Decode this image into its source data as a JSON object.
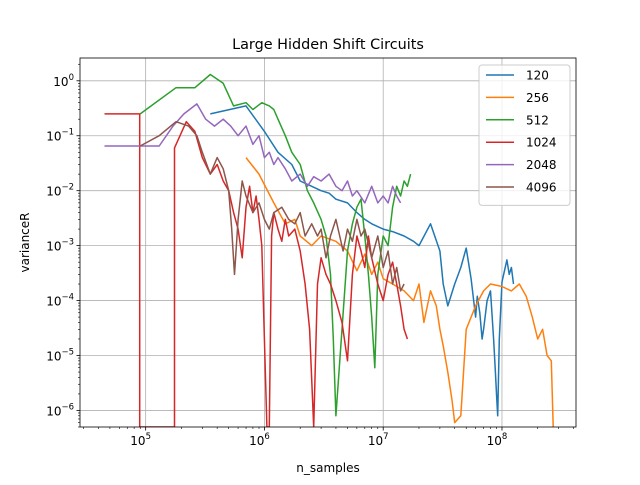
{
  "chart_data": {
    "type": "line",
    "title": "Large Hidden Shift Circuits",
    "xlabel": "n_samples",
    "ylabel": "varianceR",
    "xscale": "log",
    "yscale": "log",
    "xlim": [
      28000,
      420000000
    ],
    "ylim": [
      5e-07,
      2.6
    ],
    "grid": true,
    "legend_position": "top-right",
    "x_ticks": [
      {
        "value": 100000,
        "base": "10",
        "exp": "5"
      },
      {
        "value": 1000000,
        "base": "10",
        "exp": "6"
      },
      {
        "value": 10000000,
        "base": "10",
        "exp": "7"
      },
      {
        "value": 100000000,
        "base": "10",
        "exp": "8"
      }
    ],
    "y_ticks": [
      {
        "value": 1e-06,
        "base": "10",
        "exp": "−6"
      },
      {
        "value": 1e-05,
        "base": "10",
        "exp": "−5"
      },
      {
        "value": 0.0001,
        "base": "10",
        "exp": "−4"
      },
      {
        "value": 0.001,
        "base": "10",
        "exp": "−3"
      },
      {
        "value": 0.01,
        "base": "10",
        "exp": "−2"
      },
      {
        "value": 0.1,
        "base": "10",
        "exp": "−1"
      },
      {
        "value": 1,
        "base": "10",
        "exp": "0"
      }
    ],
    "series": [
      {
        "name": "120",
        "color": "#1f77b4",
        "points": [
          [
            350000,
            0.25
          ],
          [
            700000,
            0.35
          ],
          [
            1000000,
            0.12
          ],
          [
            1300000,
            0.05
          ],
          [
            1700000,
            0.03
          ],
          [
            2000000,
            0.015
          ],
          [
            2500000,
            0.012
          ],
          [
            3000000,
            0.01
          ],
          [
            3500000,
            0.009
          ],
          [
            4000000,
            0.007
          ],
          [
            5000000,
            0.006
          ],
          [
            6000000,
            0.004
          ],
          [
            7000000,
            0.003
          ],
          [
            8000000,
            0.0025
          ],
          [
            10000000,
            0.002
          ],
          [
            12000000,
            0.0018
          ],
          [
            15000000,
            0.0015
          ],
          [
            18000000,
            0.0012
          ],
          [
            20000000,
            0.001
          ],
          [
            25000000,
            0.0025
          ],
          [
            30000000,
            0.0008
          ],
          [
            32000000,
            0.0002
          ],
          [
            35000000,
            8e-05
          ],
          [
            40000000,
            0.0002
          ],
          [
            45000000,
            0.0004
          ],
          [
            50000000,
            0.0009
          ],
          [
            55000000,
            0.00025
          ],
          [
            60000000,
            5e-05
          ],
          [
            62000000,
            0.00012
          ],
          [
            65000000,
            6e-05
          ],
          [
            68000000,
            2e-05
          ],
          [
            70000000,
            3e-05
          ],
          [
            75000000,
            0.0001
          ],
          [
            80000000,
            0.00015
          ],
          [
            85000000,
            2e-05
          ],
          [
            88000000,
            5e-06
          ],
          [
            90000000,
            2e-06
          ],
          [
            92000000,
            8e-07
          ],
          [
            95000000,
            2e-05
          ],
          [
            100000000,
            0.00022
          ],
          [
            105000000,
            0.00035
          ],
          [
            110000000,
            0.00055
          ],
          [
            115000000,
            0.0003
          ],
          [
            120000000,
            0.0004
          ],
          [
            125000000,
            0.0002
          ]
        ]
      },
      {
        "name": "256",
        "color": "#ff7f0e",
        "points": [
          [
            700000,
            0.04
          ],
          [
            900000,
            0.02
          ],
          [
            1200000,
            0.006
          ],
          [
            1500000,
            0.0025
          ],
          [
            1800000,
            0.003
          ],
          [
            2000000,
            0.0015
          ],
          [
            2500000,
            0.001
          ],
          [
            3000000,
            0.0015
          ],
          [
            4000000,
            0.0012
          ],
          [
            5000000,
            0.0008
          ],
          [
            6000000,
            0.00035
          ],
          [
            7000000,
            0.0007
          ],
          [
            8000000,
            0.0003
          ],
          [
            9000000,
            0.0005
          ],
          [
            10000000,
            0.00025
          ],
          [
            12000000,
            0.0002
          ],
          [
            15000000,
            0.00015
          ],
          [
            18000000,
            0.0001
          ],
          [
            20000000,
            0.0002
          ],
          [
            22000000,
            4e-05
          ],
          [
            25000000,
            0.00015
          ],
          [
            28000000,
            8e-05
          ],
          [
            30000000,
            3e-05
          ],
          [
            32000000,
            1.5e-05
          ],
          [
            35000000,
            5e-06
          ],
          [
            38000000,
            1.5e-06
          ],
          [
            40000000,
            6e-07
          ],
          [
            45000000,
            8e-07
          ],
          [
            50000000,
            3e-05
          ],
          [
            55000000,
            5e-05
          ],
          [
            60000000,
            8e-05
          ],
          [
            70000000,
            0.00015
          ],
          [
            80000000,
            0.0002
          ],
          [
            100000000,
            0.00018
          ],
          [
            120000000,
            0.00015
          ],
          [
            140000000,
            0.0002
          ],
          [
            160000000,
            0.00012
          ],
          [
            180000000,
            5e-05
          ],
          [
            200000000,
            2e-05
          ],
          [
            220000000,
            3e-05
          ],
          [
            240000000,
            1e-05
          ],
          [
            260000000,
            8e-06
          ],
          [
            270000000,
            5e-07
          ]
        ]
      },
      {
        "name": "512",
        "color": "#2ca02c",
        "points": [
          [
            90000,
            0.25
          ],
          [
            180000,
            0.75
          ],
          [
            260000,
            0.75
          ],
          [
            350000,
            1.3
          ],
          [
            450000,
            0.9
          ],
          [
            550000,
            0.35
          ],
          [
            700000,
            0.4
          ],
          [
            800000,
            0.3
          ],
          [
            950000,
            0.4
          ],
          [
            1100000,
            0.35
          ],
          [
            1200000,
            0.3
          ],
          [
            1300000,
            0.2
          ],
          [
            1500000,
            0.1
          ],
          [
            1700000,
            0.05
          ],
          [
            2000000,
            0.03
          ],
          [
            2300000,
            0.01
          ],
          [
            2600000,
            0.006
          ],
          [
            3000000,
            0.003
          ],
          [
            3300000,
            0.0015
          ],
          [
            3600000,
            0.0003
          ],
          [
            3800000,
            2e-05
          ],
          [
            4000000,
            8e-07
          ],
          [
            4500000,
            3e-05
          ],
          [
            5000000,
            0.0008
          ],
          [
            5500000,
            0.0025
          ],
          [
            6000000,
            0.005
          ],
          [
            6500000,
            0.007
          ],
          [
            7000000,
            0.0015
          ],
          [
            7500000,
            0.0003
          ],
          [
            8000000,
            5e-05
          ],
          [
            8500000,
            6e-06
          ],
          [
            9000000,
            0.0003
          ],
          [
            10000000,
            0.0015
          ],
          [
            11000000,
            0.001
          ],
          [
            12000000,
            0.005
          ],
          [
            13000000,
            0.012
          ],
          [
            14000000,
            0.008
          ],
          [
            15000000,
            0.015
          ],
          [
            16000000,
            0.012
          ],
          [
            17000000,
            0.02
          ]
        ]
      },
      {
        "name": "1024",
        "color": "#d62728",
        "points": [
          [
            45000,
            0.25
          ],
          [
            89000,
            0.25
          ],
          [
            89000,
            5e-07
          ],
          [
            175000,
            5e-07
          ],
          [
            175000,
            0.06
          ],
          [
            220000,
            0.18
          ],
          [
            260000,
            0.12
          ],
          [
            300000,
            0.04
          ],
          [
            350000,
            0.02
          ],
          [
            400000,
            0.03
          ],
          [
            450000,
            0.015
          ],
          [
            500000,
            0.01
          ],
          [
            550000,
            0.004
          ],
          [
            600000,
            0.002
          ],
          [
            650000,
            0.0006
          ],
          [
            700000,
            0.005
          ],
          [
            750000,
            0.012
          ],
          [
            800000,
            0.004
          ],
          [
            850000,
            0.008
          ],
          [
            900000,
            0.003
          ],
          [
            950000,
            0.001
          ],
          [
            1000000,
            2e-05
          ],
          [
            1050000,
            5e-07
          ],
          [
            1100000,
            5e-07
          ],
          [
            1150000,
            0.0015
          ],
          [
            1200000,
            0.004
          ],
          [
            1300000,
            0.002
          ],
          [
            1400000,
            0.0012
          ],
          [
            1500000,
            0.003
          ],
          [
            1600000,
            0.0015
          ],
          [
            1800000,
            0.002
          ],
          [
            2000000,
            0.0008
          ],
          [
            2200000,
            0.0002
          ],
          [
            2400000,
            3e-05
          ],
          [
            2600000,
            5e-07
          ],
          [
            2800000,
            0.0002
          ],
          [
            3000000,
            0.0006
          ],
          [
            3300000,
            0.0003
          ],
          [
            3600000,
            0.0002
          ],
          [
            4000000,
            0.0001
          ],
          [
            4500000,
            4e-05
          ],
          [
            5000000,
            8e-06
          ],
          [
            5500000,
            0.0003
          ],
          [
            6000000,
            0.0015
          ],
          [
            6500000,
            0.0008
          ],
          [
            7000000,
            0.0004
          ],
          [
            7500000,
            0.0015
          ],
          [
            8000000,
            0.0006
          ],
          [
            9000000,
            0.0002
          ],
          [
            10000000,
            0.0001
          ],
          [
            11000000,
            0.0003
          ],
          [
            12000000,
            0.0005
          ],
          [
            13000000,
            0.0002
          ],
          [
            14000000,
            8e-05
          ],
          [
            15000000,
            3e-05
          ],
          [
            16000000,
            2e-05
          ]
        ]
      },
      {
        "name": "2048",
        "color": "#9467bd",
        "points": [
          [
            45000,
            0.065
          ],
          [
            130000,
            0.065
          ],
          [
            170000,
            0.15
          ],
          [
            210000,
            0.25
          ],
          [
            270000,
            0.38
          ],
          [
            320000,
            0.2
          ],
          [
            380000,
            0.15
          ],
          [
            450000,
            0.2
          ],
          [
            520000,
            0.15
          ],
          [
            600000,
            0.1
          ],
          [
            700000,
            0.15
          ],
          [
            800000,
            0.07
          ],
          [
            900000,
            0.1
          ],
          [
            1000000,
            0.04
          ],
          [
            1100000,
            0.05
          ],
          [
            1200000,
            0.03
          ],
          [
            1300000,
            0.04
          ],
          [
            1500000,
            0.025
          ],
          [
            1700000,
            0.015
          ],
          [
            2000000,
            0.02
          ],
          [
            2300000,
            0.012
          ],
          [
            2600000,
            0.018
          ],
          [
            3000000,
            0.015
          ],
          [
            3500000,
            0.02
          ],
          [
            4000000,
            0.012
          ],
          [
            4500000,
            0.01
          ],
          [
            5000000,
            0.015
          ],
          [
            5500000,
            0.008
          ],
          [
            6000000,
            0.01
          ],
          [
            7000000,
            0.006
          ],
          [
            8000000,
            0.012
          ],
          [
            9000000,
            0.006
          ],
          [
            10000000,
            0.008
          ],
          [
            11000000,
            0.006
          ],
          [
            12000000,
            0.012
          ],
          [
            13000000,
            0.008
          ],
          [
            14000000,
            0.006
          ]
        ]
      },
      {
        "name": "4096",
        "color": "#8c564b",
        "points": [
          [
            90000,
            0.065
          ],
          [
            130000,
            0.1
          ],
          [
            180000,
            0.18
          ],
          [
            230000,
            0.15
          ],
          [
            270000,
            0.1
          ],
          [
            300000,
            0.05
          ],
          [
            350000,
            0.02
          ],
          [
            400000,
            0.04
          ],
          [
            450000,
            0.025
          ],
          [
            500000,
            0.01
          ],
          [
            530000,
            0.002
          ],
          [
            560000,
            0.0003
          ],
          [
            600000,
            0.003
          ],
          [
            650000,
            0.015
          ],
          [
            700000,
            0.008
          ],
          [
            800000,
            0.004
          ],
          [
            900000,
            0.006
          ],
          [
            1000000,
            0.003
          ],
          [
            1100000,
            0.002
          ],
          [
            1200000,
            0.004
          ],
          [
            1400000,
            0.005
          ],
          [
            1600000,
            0.003
          ],
          [
            1800000,
            0.0025
          ],
          [
            2000000,
            0.004
          ],
          [
            2200000,
            0.0015
          ],
          [
            2500000,
            0.0025
          ],
          [
            2800000,
            0.0015
          ],
          [
            3000000,
            0.002
          ],
          [
            3300000,
            0.0006
          ],
          [
            3600000,
            0.0015
          ],
          [
            4000000,
            0.003
          ],
          [
            4300000,
            0.0015
          ],
          [
            4600000,
            0.0008
          ],
          [
            5000000,
            0.002
          ],
          [
            5500000,
            0.0012
          ],
          [
            6000000,
            0.003
          ],
          [
            6500000,
            0.0015
          ],
          [
            7000000,
            0.002
          ],
          [
            8000000,
            0.0006
          ],
          [
            9000000,
            0.0015
          ],
          [
            10000000,
            0.0004
          ],
          [
            11000000,
            0.0008
          ],
          [
            12000000,
            0.0002
          ],
          [
            13000000,
            0.0004
          ],
          [
            14000000,
            0.00015
          ],
          [
            15000000,
            0.0002
          ]
        ]
      }
    ]
  }
}
